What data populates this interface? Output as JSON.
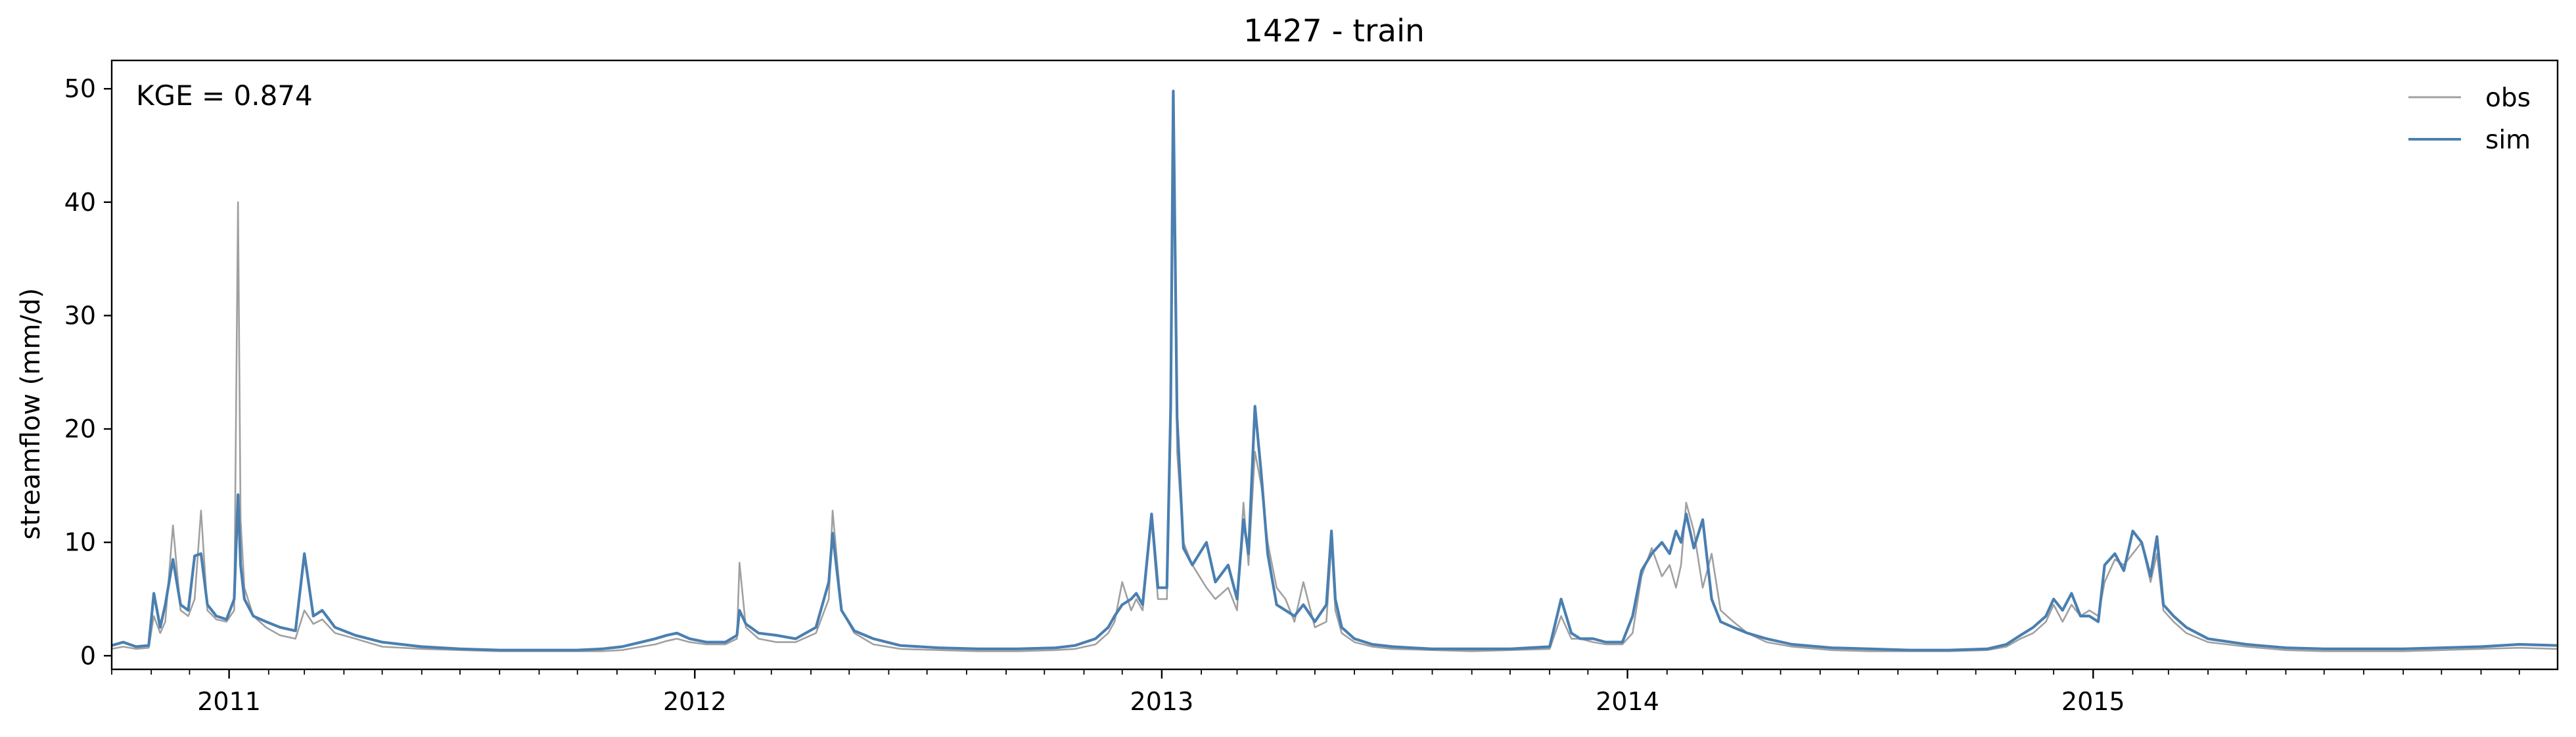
{
  "chart_data": {
    "type": "line",
    "title": "1427 - train",
    "xlabel": "",
    "ylabel": "streamflow (mm/d)",
    "annotation": "KGE = 0.874",
    "x_range": [
      "2010-10-01",
      "2015-12-31"
    ],
    "x_tick_labels": [
      "2011",
      "2012",
      "2013",
      "2014",
      "2015"
    ],
    "y_ticks": [
      0,
      10,
      20,
      30,
      40,
      50
    ],
    "ylim": [
      -1.2,
      52.5
    ],
    "grid": false,
    "legend": {
      "placement": "top-right",
      "entries": [
        "obs",
        "sim"
      ]
    },
    "series": [
      {
        "name": "obs",
        "color": "#a0a0a0",
        "x": [
          "2010-10-01",
          "2010-10-10",
          "2010-10-20",
          "2010-10-30",
          "2010-11-03",
          "2010-11-08",
          "2010-11-12",
          "2010-11-18",
          "2010-11-24",
          "2010-11-30",
          "2010-12-05",
          "2010-12-10",
          "2010-12-15",
          "2010-12-22",
          "2010-12-30",
          "2011-01-05",
          "2011-01-08",
          "2011-01-10",
          "2011-01-13",
          "2011-01-20",
          "2011-01-30",
          "2011-02-10",
          "2011-02-22",
          "2011-03-01",
          "2011-03-08",
          "2011-03-15",
          "2011-03-25",
          "2011-04-10",
          "2011-05-01",
          "2011-06-01",
          "2011-07-01",
          "2011-08-01",
          "2011-09-01",
          "2011-10-01",
          "2011-10-20",
          "2011-11-05",
          "2011-11-20",
          "2011-12-01",
          "2011-12-10",
          "2011-12-18",
          "2011-12-28",
          "2012-01-10",
          "2012-01-25",
          "2012-02-03",
          "2012-02-05",
          "2012-02-10",
          "2012-02-20",
          "2012-03-05",
          "2012-03-20",
          "2012-04-05",
          "2012-04-15",
          "2012-04-18",
          "2012-04-25",
          "2012-05-05",
          "2012-05-20",
          "2012-06-10",
          "2012-07-10",
          "2012-08-10",
          "2012-09-10",
          "2012-10-10",
          "2012-10-25",
          "2012-11-10",
          "2012-11-20",
          "2012-11-25",
          "2012-12-01",
          "2012-12-08",
          "2012-12-12",
          "2012-12-17",
          "2012-12-24",
          "2012-12-29",
          "2013-01-05",
          "2013-01-08",
          "2013-01-10",
          "2013-01-13",
          "2013-01-18",
          "2013-01-25",
          "2013-02-05",
          "2013-02-12",
          "2013-02-22",
          "2013-03-01",
          "2013-03-06",
          "2013-03-10",
          "2013-03-15",
          "2013-03-20",
          "2013-03-25",
          "2013-04-01",
          "2013-04-08",
          "2013-04-15",
          "2013-04-22",
          "2013-05-01",
          "2013-05-10",
          "2013-05-14",
          "2013-05-17",
          "2013-05-22",
          "2013-06-01",
          "2013-06-15",
          "2013-07-01",
          "2013-08-01",
          "2013-09-01",
          "2013-10-01",
          "2013-11-01",
          "2013-11-10",
          "2013-11-18",
          "2013-11-25",
          "2013-12-05",
          "2013-12-15",
          "2013-12-28",
          "2014-01-05",
          "2014-01-12",
          "2014-01-20",
          "2014-01-28",
          "2014-02-03",
          "2014-02-08",
          "2014-02-12",
          "2014-02-16",
          "2014-02-22",
          "2014-03-01",
          "2014-03-08",
          "2014-03-15",
          "2014-03-25",
          "2014-04-05",
          "2014-04-20",
          "2014-05-10",
          "2014-06-10",
          "2014-07-10",
          "2014-08-10",
          "2014-09-10",
          "2014-10-10",
          "2014-10-25",
          "2014-11-05",
          "2014-11-15",
          "2014-11-25",
          "2014-12-01",
          "2014-12-08",
          "2014-12-15",
          "2014-12-22",
          "2014-12-29",
          "2015-01-05",
          "2015-01-10",
          "2015-01-18",
          "2015-01-25",
          "2015-02-01",
          "2015-02-08",
          "2015-02-15",
          "2015-02-20",
          "2015-02-25",
          "2015-03-05",
          "2015-03-15",
          "2015-04-01",
          "2015-05-01",
          "2015-06-01",
          "2015-07-01",
          "2015-08-01",
          "2015-09-01",
          "2015-10-01",
          "2015-11-01",
          "2015-12-01",
          "2015-12-31"
        ],
        "y": [
          0.6,
          0.8,
          0.6,
          0.7,
          3.5,
          2.0,
          3.0,
          11.5,
          4.0,
          3.5,
          5.0,
          12.8,
          4.0,
          3.2,
          3.0,
          4.0,
          40.0,
          12.0,
          6.0,
          3.5,
          2.5,
          1.8,
          1.5,
          4.0,
          2.8,
          3.2,
          2.0,
          1.5,
          0.8,
          0.6,
          0.5,
          0.4,
          0.4,
          0.4,
          0.4,
          0.5,
          0.8,
          1.0,
          1.3,
          1.5,
          1.2,
          1.0,
          1.0,
          1.5,
          8.2,
          2.5,
          1.5,
          1.2,
          1.2,
          2.0,
          5.0,
          12.8,
          4.0,
          2.0,
          1.0,
          0.6,
          0.5,
          0.4,
          0.4,
          0.5,
          0.6,
          1.0,
          2.0,
          3.0,
          6.5,
          4.0,
          5.0,
          4.0,
          12.0,
          5.0,
          5.0,
          20.0,
          49.0,
          18.0,
          10.0,
          8.0,
          6.0,
          5.0,
          6.0,
          4.0,
          13.5,
          8.0,
          18.0,
          15.0,
          10.0,
          6.0,
          5.0,
          3.0,
          6.5,
          2.5,
          3.0,
          10.0,
          4.0,
          2.0,
          1.2,
          0.8,
          0.6,
          0.5,
          0.4,
          0.5,
          0.6,
          3.5,
          1.5,
          1.5,
          1.2,
          1.0,
          1.0,
          2.0,
          7.0,
          9.5,
          7.0,
          8.0,
          6.0,
          8.0,
          13.5,
          11.0,
          6.0,
          9.0,
          4.0,
          3.0,
          2.0,
          1.2,
          0.8,
          0.5,
          0.4,
          0.4,
          0.4,
          0.5,
          0.8,
          1.5,
          2.0,
          3.0,
          4.5,
          3.0,
          4.5,
          3.5,
          4.0,
          3.5,
          6.5,
          8.5,
          8.0,
          9.0,
          10.0,
          6.5,
          9.0,
          4.0,
          3.0,
          2.0,
          1.2,
          0.8,
          0.5,
          0.4,
          0.4,
          0.4,
          0.5,
          0.6,
          0.7,
          0.6
        ]
      },
      {
        "name": "sim",
        "color": "#4a7fb0",
        "x": [
          "2010-10-01",
          "2010-10-10",
          "2010-10-20",
          "2010-10-30",
          "2010-11-03",
          "2010-11-08",
          "2010-11-12",
          "2010-11-18",
          "2010-11-24",
          "2010-11-30",
          "2010-12-05",
          "2010-12-10",
          "2010-12-15",
          "2010-12-22",
          "2010-12-30",
          "2011-01-05",
          "2011-01-08",
          "2011-01-10",
          "2011-01-13",
          "2011-01-20",
          "2011-01-30",
          "2011-02-10",
          "2011-02-22",
          "2011-03-01",
          "2011-03-08",
          "2011-03-15",
          "2011-03-25",
          "2011-04-10",
          "2011-05-01",
          "2011-06-01",
          "2011-07-01",
          "2011-08-01",
          "2011-09-01",
          "2011-10-01",
          "2011-10-20",
          "2011-11-05",
          "2011-11-20",
          "2011-12-01",
          "2011-12-10",
          "2011-12-18",
          "2011-12-28",
          "2012-01-10",
          "2012-01-25",
          "2012-02-03",
          "2012-02-05",
          "2012-02-10",
          "2012-02-20",
          "2012-03-05",
          "2012-03-20",
          "2012-04-05",
          "2012-04-15",
          "2012-04-18",
          "2012-04-25",
          "2012-05-05",
          "2012-05-20",
          "2012-06-10",
          "2012-07-10",
          "2012-08-10",
          "2012-09-10",
          "2012-10-10",
          "2012-10-25",
          "2012-11-10",
          "2012-11-20",
          "2012-11-25",
          "2012-12-01",
          "2012-12-08",
          "2012-12-12",
          "2012-12-17",
          "2012-12-24",
          "2012-12-29",
          "2013-01-05",
          "2013-01-08",
          "2013-01-10",
          "2013-01-13",
          "2013-01-18",
          "2013-01-25",
          "2013-02-05",
          "2013-02-12",
          "2013-02-22",
          "2013-03-01",
          "2013-03-06",
          "2013-03-10",
          "2013-03-15",
          "2013-03-20",
          "2013-03-25",
          "2013-04-01",
          "2013-04-08",
          "2013-04-15",
          "2013-04-22",
          "2013-05-01",
          "2013-05-10",
          "2013-05-14",
          "2013-05-17",
          "2013-05-22",
          "2013-06-01",
          "2013-06-15",
          "2013-07-01",
          "2013-08-01",
          "2013-09-01",
          "2013-10-01",
          "2013-11-01",
          "2013-11-10",
          "2013-11-18",
          "2013-11-25",
          "2013-12-05",
          "2013-12-15",
          "2013-12-28",
          "2014-01-05",
          "2014-01-12",
          "2014-01-20",
          "2014-01-28",
          "2014-02-03",
          "2014-02-08",
          "2014-02-12",
          "2014-02-16",
          "2014-02-22",
          "2014-03-01",
          "2014-03-08",
          "2014-03-15",
          "2014-03-25",
          "2014-04-05",
          "2014-04-20",
          "2014-05-10",
          "2014-06-10",
          "2014-07-10",
          "2014-08-10",
          "2014-09-10",
          "2014-10-10",
          "2014-10-25",
          "2014-11-05",
          "2014-11-15",
          "2014-11-25",
          "2014-12-01",
          "2014-12-08",
          "2014-12-15",
          "2014-12-22",
          "2014-12-29",
          "2015-01-05",
          "2015-01-10",
          "2015-01-18",
          "2015-01-25",
          "2015-02-01",
          "2015-02-08",
          "2015-02-15",
          "2015-02-20",
          "2015-02-25",
          "2015-03-05",
          "2015-03-15",
          "2015-04-01",
          "2015-05-01",
          "2015-06-01",
          "2015-07-01",
          "2015-08-01",
          "2015-09-01",
          "2015-10-01",
          "2015-11-01",
          "2015-12-01",
          "2015-12-31"
        ],
        "y": [
          0.9,
          1.2,
          0.8,
          0.9,
          5.5,
          2.5,
          4.5,
          8.5,
          4.5,
          4.0,
          8.8,
          9.0,
          4.5,
          3.5,
          3.2,
          5.0,
          14.2,
          8.0,
          5.0,
          3.5,
          3.0,
          2.5,
          2.2,
          9.0,
          3.5,
          4.0,
          2.5,
          1.8,
          1.2,
          0.8,
          0.6,
          0.5,
          0.5,
          0.5,
          0.6,
          0.8,
          1.2,
          1.5,
          1.8,
          2.0,
          1.5,
          1.2,
          1.2,
          1.8,
          4.0,
          2.8,
          2.0,
          1.8,
          1.5,
          2.5,
          6.5,
          10.8,
          4.0,
          2.2,
          1.5,
          0.9,
          0.7,
          0.6,
          0.6,
          0.7,
          0.9,
          1.5,
          2.5,
          3.5,
          4.5,
          5.0,
          5.5,
          4.5,
          12.5,
          6.0,
          6.0,
          22.0,
          49.8,
          21.0,
          9.5,
          8.0,
          10.0,
          6.5,
          8.0,
          5.0,
          12.0,
          9.0,
          22.0,
          16.0,
          9.0,
          4.5,
          4.0,
          3.5,
          4.5,
          3.0,
          4.5,
          11.0,
          5.0,
          2.5,
          1.5,
          1.0,
          0.8,
          0.6,
          0.6,
          0.6,
          0.8,
          5.0,
          2.0,
          1.5,
          1.5,
          1.2,
          1.2,
          3.5,
          7.5,
          9.0,
          10.0,
          9.0,
          11.0,
          10.0,
          12.5,
          9.5,
          12.0,
          5.0,
          3.0,
          2.5,
          2.0,
          1.5,
          1.0,
          0.7,
          0.6,
          0.5,
          0.5,
          0.6,
          1.0,
          1.8,
          2.5,
          3.5,
          5.0,
          4.0,
          5.5,
          3.5,
          3.5,
          3.0,
          8.0,
          9.0,
          7.5,
          11.0,
          10.0,
          7.0,
          10.5,
          4.5,
          3.5,
          2.5,
          1.5,
          1.0,
          0.7,
          0.6,
          0.6,
          0.6,
          0.7,
          0.8,
          1.0,
          0.9
        ]
      }
    ]
  }
}
